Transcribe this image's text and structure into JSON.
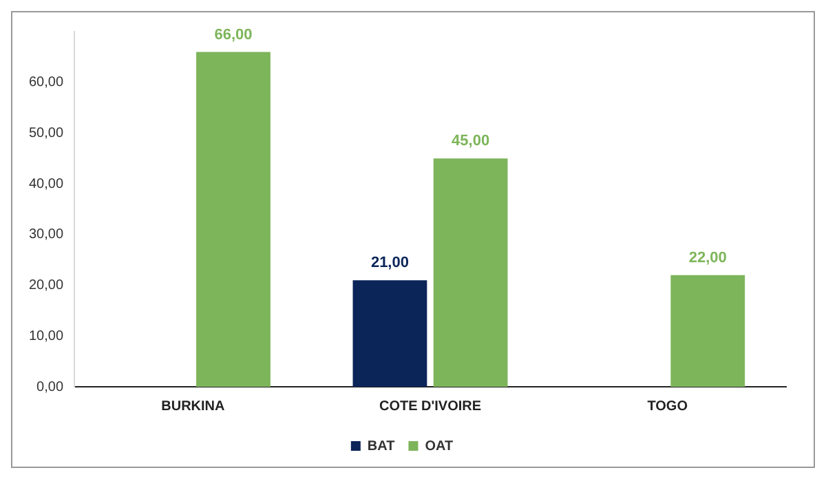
{
  "chart_data": {
    "type": "bar",
    "categories": [
      "BURKINA",
      "COTE D'IVOIRE",
      "TOGO"
    ],
    "series": [
      {
        "name": "BAT",
        "color": "#0b2559",
        "values": [
          null,
          21,
          null
        ],
        "value_labels": [
          null,
          "21,00",
          null
        ]
      },
      {
        "name": "OAT",
        "color": "#7db55a",
        "values": [
          66,
          45,
          22
        ],
        "value_labels": [
          "66,00",
          "45,00",
          "22,00"
        ]
      }
    ],
    "ylim": [
      0,
      70
    ],
    "yticks": [
      {
        "value": 0,
        "label": "0,00"
      },
      {
        "value": 10,
        "label": "10,00"
      },
      {
        "value": 20,
        "label": "20,00"
      },
      {
        "value": 30,
        "label": "30,00"
      },
      {
        "value": 40,
        "label": "40,00"
      },
      {
        "value": 50,
        "label": "50,00"
      },
      {
        "value": 60,
        "label": "60,00"
      }
    ],
    "grid": false,
    "legend": "bottom"
  }
}
